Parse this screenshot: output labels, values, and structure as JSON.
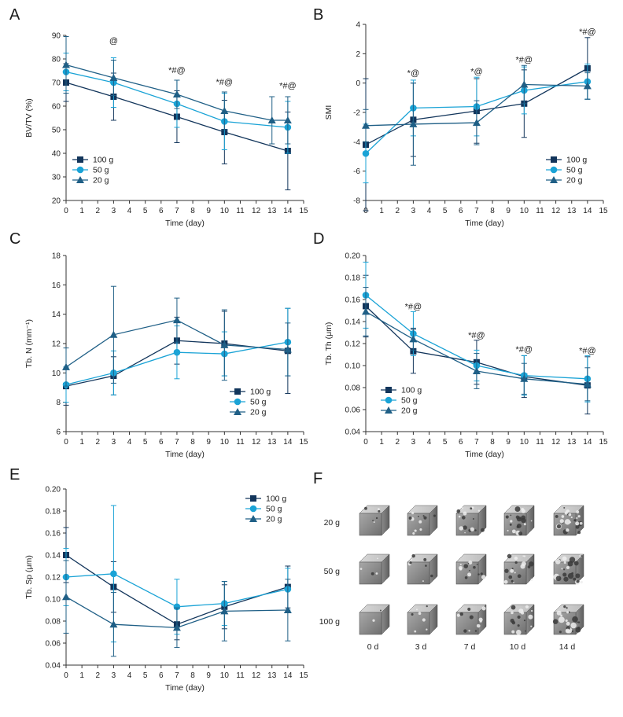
{
  "figure": {
    "colors": {
      "100 g": "#12355b",
      "50 g": "#1aa3d6",
      "20 g": "#1f5f86"
    },
    "markers": {
      "100 g": "square",
      "50 g": "circle",
      "20 g": "triangle"
    }
  },
  "chart_data": [
    {
      "panel": "A",
      "type": "line",
      "xlabel": "Time (day)",
      "ylabel": "BV/TV (%)",
      "xlim": [
        0,
        15
      ],
      "ylim": [
        20,
        90
      ],
      "xticks": [
        0,
        1,
        2,
        3,
        4,
        5,
        6,
        7,
        8,
        9,
        10,
        11,
        12,
        13,
        14,
        15
      ],
      "yticks": [
        20,
        30,
        40,
        50,
        60,
        70,
        80,
        90
      ],
      "legend_position": "bottom-left",
      "series": [
        {
          "name": "100 g",
          "x": [
            0,
            3,
            7,
            10,
            14
          ],
          "y": [
            70,
            64,
            55.5,
            49,
            41
          ],
          "err": [
            8,
            10,
            11,
            13.5,
            16.5
          ]
        },
        {
          "name": "50 g",
          "x": [
            0,
            3,
            7,
            10,
            14
          ],
          "y": [
            74.5,
            70,
            61,
            53.5,
            51
          ],
          "err": [
            8,
            10.5,
            10,
            12,
            11
          ]
        },
        {
          "name": "20 g",
          "x": [
            0,
            3,
            7,
            10,
            13,
            14
          ],
          "y": [
            77.5,
            72,
            65,
            58,
            54,
            54
          ],
          "err": [
            12,
            7.5,
            6,
            8,
            10,
            10
          ]
        }
      ],
      "annotations": [
        {
          "x": 3,
          "y": 86.5,
          "text": "@"
        },
        {
          "x": 7,
          "y": 74,
          "text": "*#@"
        },
        {
          "x": 10,
          "y": 69,
          "text": "*#@"
        },
        {
          "x": 14,
          "y": 67.5,
          "text": "*#@"
        }
      ]
    },
    {
      "panel": "B",
      "type": "line",
      "xlabel": "Time (day)",
      "ylabel": "SMI",
      "xlim": [
        0,
        15
      ],
      "ylim": [
        -8,
        4
      ],
      "xticks": [
        0,
        1,
        2,
        3,
        4,
        5,
        6,
        7,
        8,
        9,
        10,
        11,
        12,
        13,
        14,
        15
      ],
      "yticks": [
        -8,
        -6,
        -4,
        -2,
        0,
        2,
        4
      ],
      "legend_position": "bottom-right",
      "series": [
        {
          "name": "100 g",
          "x": [
            0,
            3,
            7,
            10,
            14
          ],
          "y": [
            -4.2,
            -2.5,
            -1.9,
            -1.4,
            1.0
          ],
          "err": [
            4.5,
            2.5,
            2.2,
            2.3,
            2.1
          ]
        },
        {
          "name": "50 g",
          "x": [
            0,
            3,
            7,
            10,
            14
          ],
          "y": [
            -4.8,
            -1.7,
            -1.6,
            -0.5,
            0.1
          ],
          "err": [
            2.0,
            1.9,
            2.0,
            1.6,
            1.2
          ]
        },
        {
          "name": "20 g",
          "x": [
            0,
            3,
            7,
            10,
            14
          ],
          "y": [
            -2.9,
            -2.8,
            -2.7,
            -0.1,
            -0.2
          ],
          "err": [
            1.1,
            2.8,
            1.5,
            1.3,
            0.9
          ]
        }
      ],
      "annotations": [
        {
          "x": 3,
          "y": 0.5,
          "text": "*@"
        },
        {
          "x": 7,
          "y": 0.6,
          "text": "*@"
        },
        {
          "x": 10,
          "y": 1.4,
          "text": "*#@"
        },
        {
          "x": 14,
          "y": 3.3,
          "text": "*#@"
        }
      ]
    },
    {
      "panel": "C",
      "type": "line",
      "xlabel": "Time (day)",
      "ylabel": "Tb. N (mm⁻¹)",
      "xlim": [
        0,
        15
      ],
      "ylim": [
        6,
        18
      ],
      "xticks": [
        0,
        1,
        2,
        3,
        4,
        5,
        6,
        7,
        8,
        9,
        10,
        11,
        12,
        13,
        14,
        15
      ],
      "yticks": [
        6,
        8,
        10,
        12,
        14,
        16,
        18
      ],
      "legend_position": "bottom-right",
      "series": [
        {
          "name": "100 g",
          "x": [
            0,
            3,
            7,
            10,
            14
          ],
          "y": [
            9.1,
            9.8,
            12.2,
            12.0,
            11.5
          ],
          "err": [
            1.3,
            1.3,
            1.6,
            2.2,
            2.9
          ]
        },
        {
          "name": "50 g",
          "x": [
            0,
            3,
            7,
            10,
            14
          ],
          "y": [
            9.2,
            10.0,
            11.4,
            11.3,
            12.1
          ],
          "err": [
            1.2,
            1.5,
            1.8,
            1.5,
            2.3
          ]
        },
        {
          "name": "20 g",
          "x": [
            0,
            3,
            7,
            10,
            14
          ],
          "y": [
            10.4,
            12.6,
            13.6,
            11.9,
            11.6
          ],
          "err": [
            1.3,
            3.3,
            1.5,
            2.4,
            1.8
          ]
        }
      ],
      "annotations": []
    },
    {
      "panel": "D",
      "type": "line",
      "xlabel": "Time (day)",
      "ylabel": "Tb. Th (μm)",
      "xlim": [
        0,
        15
      ],
      "ylim": [
        0.04,
        0.2
      ],
      "xticks": [
        0,
        1,
        2,
        3,
        4,
        5,
        6,
        7,
        8,
        9,
        10,
        11,
        12,
        13,
        14,
        15
      ],
      "yticks": [
        0.04,
        0.06,
        0.08,
        0.1,
        0.12,
        0.14,
        0.16,
        0.18,
        0.2
      ],
      "legend_position": "bottom-left",
      "series": [
        {
          "name": "100 g",
          "x": [
            0,
            3,
            7,
            10,
            14
          ],
          "y": [
            0.154,
            0.113,
            0.103,
            0.09,
            0.082
          ],
          "err": [
            0.028,
            0.02,
            0.02,
            0.019,
            0.026
          ]
        },
        {
          "name": "50 g",
          "x": [
            0,
            3,
            7,
            10,
            14
          ],
          "y": [
            0.164,
            0.129,
            0.1,
            0.091,
            0.088
          ],
          "err": [
            0.03,
            0.02,
            0.014,
            0.018,
            0.021
          ]
        },
        {
          "name": "20 g",
          "x": [
            0,
            3,
            7,
            10,
            14
          ],
          "y": [
            0.149,
            0.124,
            0.095,
            0.088,
            0.083
          ],
          "err": [
            0.022,
            0.01,
            0.016,
            0.014,
            0.015
          ]
        }
      ],
      "annotations": [
        {
          "x": 3,
          "y": 0.151,
          "text": "*#@"
        },
        {
          "x": 7,
          "y": 0.125,
          "text": "*#@"
        },
        {
          "x": 10,
          "y": 0.112,
          "text": "*#@"
        },
        {
          "x": 14,
          "y": 0.111,
          "text": "*#@"
        }
      ]
    },
    {
      "panel": "E",
      "type": "line",
      "xlabel": "Time (day)",
      "ylabel": "Tb. Sp (μm)",
      "xlim": [
        0,
        15
      ],
      "ylim": [
        0.04,
        0.2
      ],
      "xticks": [
        0,
        1,
        2,
        3,
        4,
        5,
        6,
        7,
        8,
        9,
        10,
        11,
        12,
        13,
        14,
        15
      ],
      "yticks": [
        0.04,
        0.06,
        0.08,
        0.1,
        0.12,
        0.14,
        0.16,
        0.18,
        0.2
      ],
      "legend_position": "top-right",
      "series": [
        {
          "name": "100 g",
          "x": [
            0,
            3,
            7,
            10,
            14
          ],
          "y": [
            0.14,
            0.111,
            0.077,
            0.093,
            0.111
          ],
          "err": [
            0.025,
            0.023,
            0.014,
            0.02,
            0.019
          ]
        },
        {
          "name": "50 g",
          "x": [
            0,
            3,
            7,
            10,
            14
          ],
          "y": [
            0.12,
            0.123,
            0.093,
            0.096,
            0.109
          ],
          "err": [
            0.026,
            0.062,
            0.025,
            0.02,
            0.019
          ]
        },
        {
          "name": "20 g",
          "x": [
            0,
            3,
            7,
            10,
            14
          ],
          "y": [
            0.102,
            0.077,
            0.074,
            0.089,
            0.09
          ],
          "err": [
            0.033,
            0.029,
            0.018,
            0.027,
            0.028
          ]
        }
      ],
      "annotations": []
    }
  ],
  "panel_f": {
    "letter": "F",
    "rows": [
      "20 g",
      "50 g",
      "100 g"
    ],
    "cols": [
      "0 d",
      "3 d",
      "7 d",
      "10 d",
      "14 d"
    ]
  }
}
